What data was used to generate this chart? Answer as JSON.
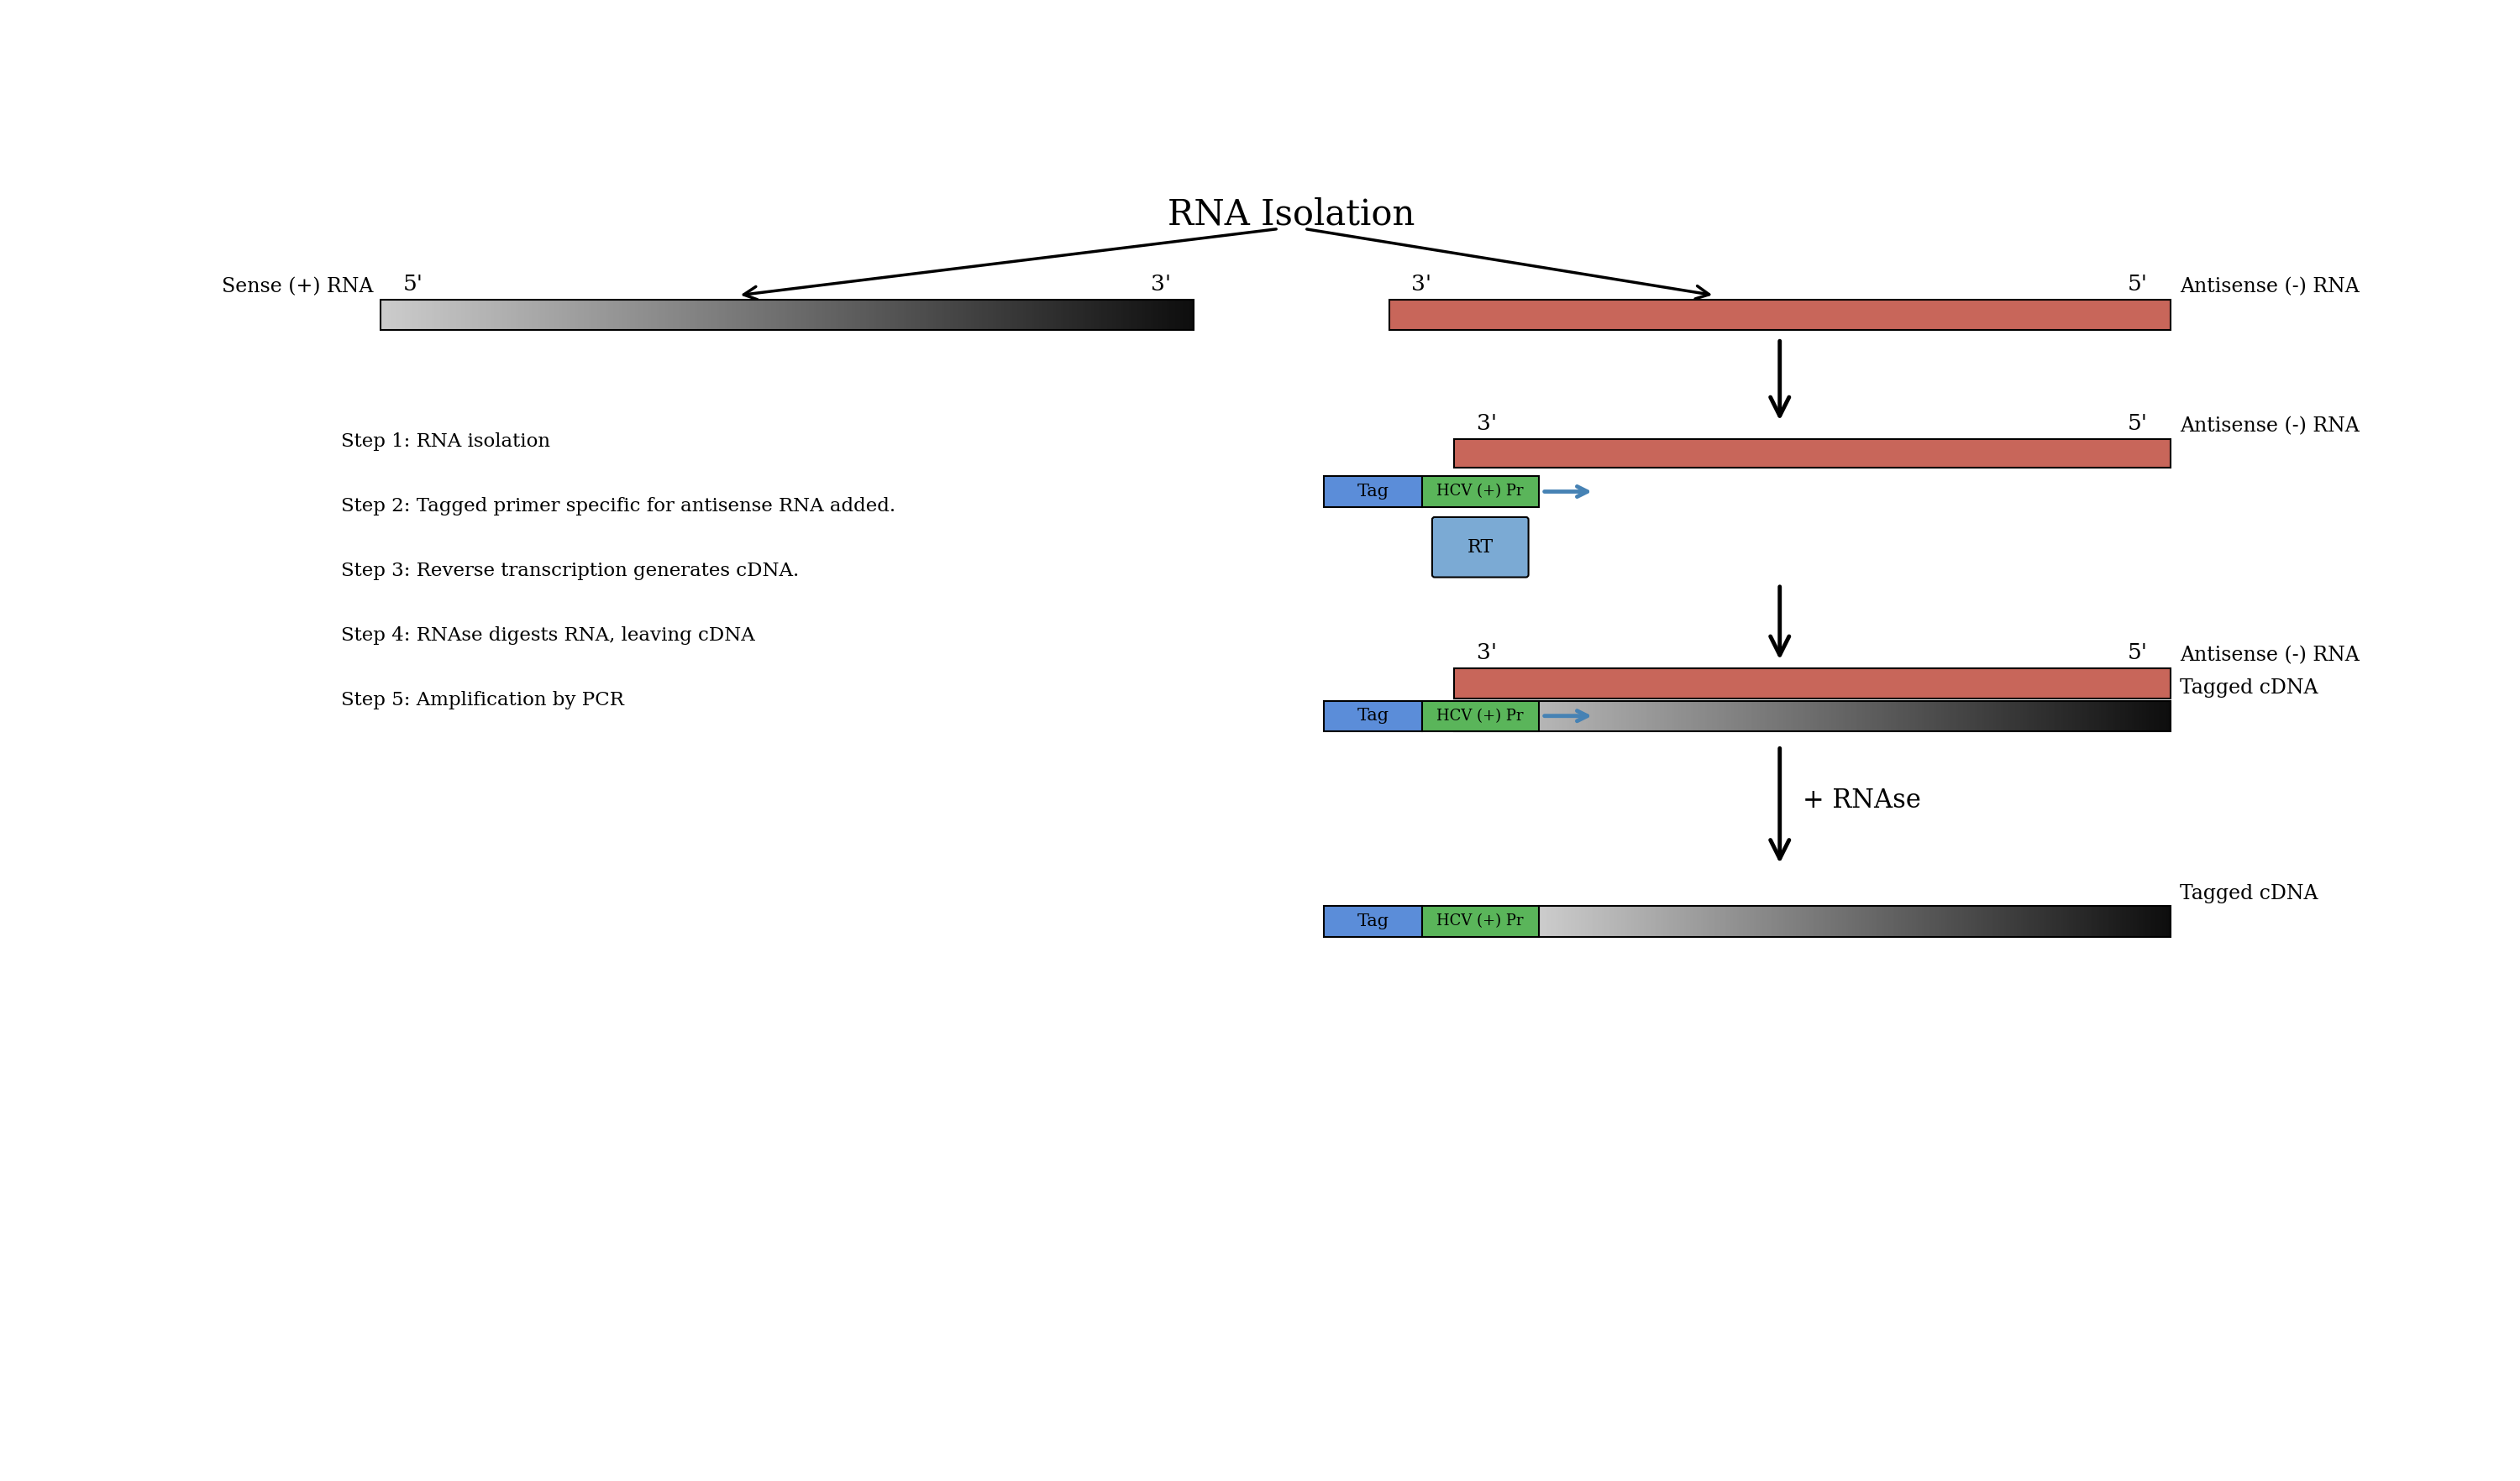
{
  "title": "RNA Isolation",
  "bg_color": "#ffffff",
  "sense_rna_label": "Sense (+) RNA",
  "antisense_rna_label": "Antisense (-) RNA",
  "antisense_cdna_label": "Antisense (-) RNA",
  "tagged_cdna_label": "Tagged cDNA",
  "tag_color": "#5b8dd9",
  "hcv_color": "#5ab55a",
  "antisense_color": "#c8665a",
  "rt_color": "#7baad4",
  "step1": "Step 1: RNA isolation",
  "step2": "Step 2: Tagged primer specific for antisense RNA added.",
  "step3": "Step 3: Reverse transcription generates cDNA.",
  "step4": "Step 4: RNAse digests RNA, leaving cDNA",
  "step5": "Step 5: Amplification by PCR",
  "rnase_label": "+ RNAse"
}
